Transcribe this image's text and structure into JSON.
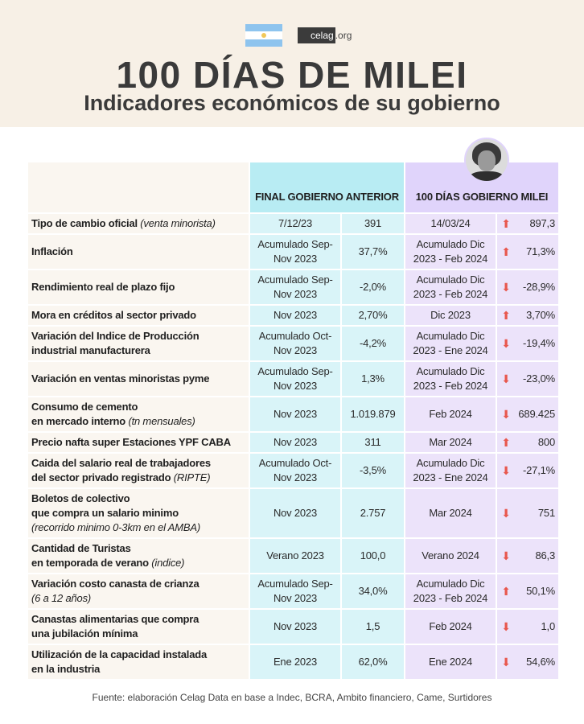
{
  "header": {
    "logo_main": "celag",
    "logo_suffix": ".org",
    "title": "100 DÍAS DE MILEI",
    "subtitle": "Indicadores económicos de su gobierno"
  },
  "colors": {
    "up_arrow": "#e8574d",
    "down_arrow": "#e8574d",
    "prev_header": "#b8ecf3",
    "milei_header": "#e0d4fb"
  },
  "table": {
    "col_prev": "FINAL GOBIERNO ANTERIOR",
    "col_milei": "100 DÍAS GOBIERNO MILEI",
    "rows": [
      {
        "label": [
          [
            [
              "Tipo de cambio oficial ",
              0
            ],
            [
              "(venta minorista)",
              1
            ]
          ]
        ],
        "prev_period": "7/12/23",
        "prev_value": "391",
        "milei_period": "14/03/24",
        "trend": "up",
        "milei_value": "897,3"
      },
      {
        "label": [
          [
            [
              "Inflación",
              0
            ]
          ]
        ],
        "prev_period": "Acumulado Sep-\nNov 2023",
        "prev_value": "37,7%",
        "milei_period": "Acumulado Dic\n2023 - Feb 2024",
        "trend": "up",
        "milei_value": "71,3%"
      },
      {
        "label": [
          [
            [
              "Rendimiento real de plazo fijo",
              0
            ]
          ]
        ],
        "prev_period": "Acumulado Sep-\nNov 2023",
        "prev_value": "-2,0%",
        "milei_period": "Acumulado Dic\n2023 - Feb 2024",
        "trend": "down",
        "milei_value": "-28,9%"
      },
      {
        "label": [
          [
            [
              "Mora en créditos al sector privado",
              0
            ]
          ]
        ],
        "prev_period": "Nov 2023",
        "prev_value": "2,70%",
        "milei_period": "Dic 2023",
        "trend": "up",
        "milei_value": "3,70%"
      },
      {
        "label": [
          [
            [
              "Variación del Indice de Producción",
              0
            ]
          ],
          [
            [
              "industrial manufacturera",
              0
            ]
          ]
        ],
        "prev_period": "Acumulado Oct-\nNov 2023",
        "prev_value": "-4,2%",
        "milei_period": "Acumulado Dic\n2023 - Ene 2024",
        "trend": "down",
        "milei_value": "-19,4%"
      },
      {
        "label": [
          [
            [
              "Variación en ventas minoristas pyme",
              0
            ]
          ]
        ],
        "prev_period": "Acumulado Sep-\nNov 2023",
        "prev_value": "1,3%",
        "milei_period": "Acumulado Dic\n2023 - Feb 2024",
        "trend": "down",
        "milei_value": "-23,0%"
      },
      {
        "label": [
          [
            [
              "Consumo de cemento",
              0
            ]
          ],
          [
            [
              "en mercado interno ",
              0
            ],
            [
              "(tn mensuales)",
              1
            ]
          ]
        ],
        "prev_period": "Nov 2023",
        "prev_value": "1.019.879",
        "milei_period": "Feb 2024",
        "trend": "down",
        "milei_value": "689.425"
      },
      {
        "label": [
          [
            [
              "Precio nafta super Estaciones YPF CABA",
              0
            ]
          ]
        ],
        "prev_period": "Nov 2023",
        "prev_value": "311",
        "milei_period": "Mar 2024",
        "trend": "up",
        "milei_value": "800"
      },
      {
        "label": [
          [
            [
              "Caida del salario real de trabajadores",
              0
            ]
          ],
          [
            [
              "del sector privado registrado ",
              0
            ],
            [
              "(RIPTE)",
              1
            ]
          ]
        ],
        "prev_period": "Acumulado Oct-\nNov 2023",
        "prev_value": "-3,5%",
        "milei_period": "Acumulado Dic\n2023 - Ene 2024",
        "trend": "down",
        "milei_value": "-27,1%"
      },
      {
        "label": [
          [
            [
              "Boletos de colectivo",
              0
            ]
          ],
          [
            [
              "que compra un salario minimo",
              0
            ]
          ],
          [
            [
              "(recorrido minimo 0-3km en el AMBA)",
              1
            ]
          ]
        ],
        "prev_period": "Nov 2023",
        "prev_value": "2.757",
        "milei_period": "Mar 2024",
        "trend": "down",
        "milei_value": "751"
      },
      {
        "label": [
          [
            [
              "Cantidad de Turistas",
              0
            ]
          ],
          [
            [
              "en temporada de verano ",
              0
            ],
            [
              "(indice)",
              1
            ]
          ]
        ],
        "prev_period": "Verano 2023",
        "prev_value": "100,0",
        "milei_period": "Verano 2024",
        "trend": "down",
        "milei_value": "86,3"
      },
      {
        "label": [
          [
            [
              "Variación costo canasta de crianza",
              0
            ]
          ],
          [
            [
              "(6 a 12 años)",
              1
            ]
          ]
        ],
        "prev_period": "Acumulado Sep-\nNov 2023",
        "prev_value": "34,0%",
        "milei_period": "Acumulado Dic\n2023 - Feb 2024",
        "trend": "up",
        "milei_value": "50,1%"
      },
      {
        "label": [
          [
            [
              "Canastas alimentarias que compra",
              0
            ]
          ],
          [
            [
              "una jubilación mínima",
              0
            ]
          ]
        ],
        "prev_period": "Nov 2023",
        "prev_value": "1,5",
        "milei_period": "Feb 2024",
        "trend": "down",
        "milei_value": "1,0"
      },
      {
        "label": [
          [
            [
              "Utilización de la capacidad instalada",
              0
            ]
          ],
          [
            [
              "en la industria",
              0
            ]
          ]
        ],
        "prev_period": "Ene 2023",
        "prev_value": "62,0%",
        "milei_period": "Ene 2024",
        "trend": "down",
        "milei_value": "54,6%"
      }
    ]
  },
  "footer": "Fuente: elaboración Celag Data en base a Indec, BCRA, Ambito financiero, Came, Surtidores"
}
